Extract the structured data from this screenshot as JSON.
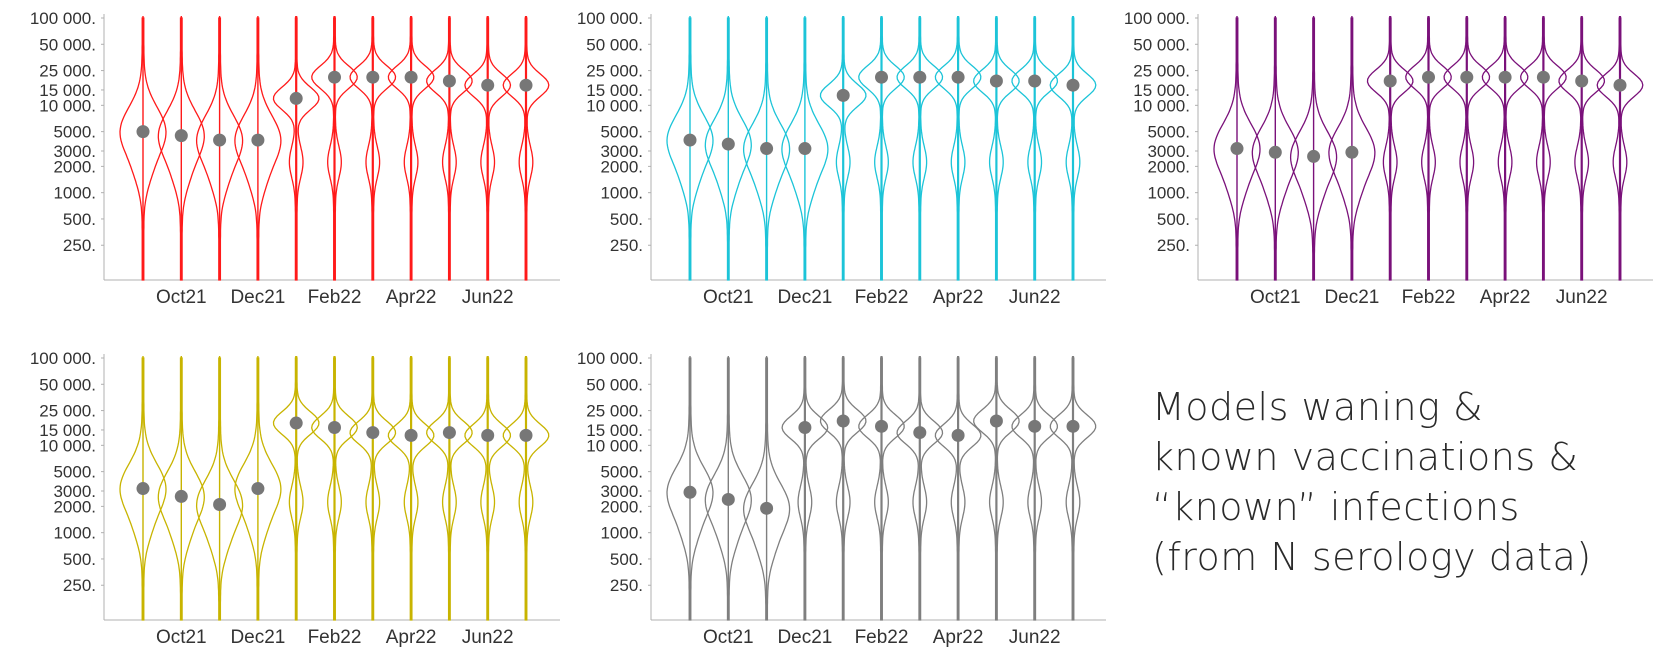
{
  "caption": {
    "line1": "Models waning &",
    "line2": "known vaccinations &",
    "line3": "“known” infections",
    "line4": "(from N serology data)"
  },
  "chart_data": [
    {
      "type": "violin",
      "color": "#ff1a1a",
      "y_scale": "log",
      "ylim": [
        100,
        100000
      ],
      "yticks": [
        100000,
        50000,
        25000,
        15000,
        10000,
        5000,
        3000,
        2000,
        1000,
        500,
        250
      ],
      "ytick_labels": [
        "100 000.",
        "50 000.",
        "25 000.",
        "15 000.",
        "10 000.",
        "5000.",
        "3000.",
        "2000.",
        "1000.",
        "500.",
        "250."
      ],
      "xtick_labels": [
        "Oct21",
        "Dec21",
        "Feb22",
        "Apr22",
        "Jun22"
      ],
      "median_values": [
        5000,
        4500,
        4000,
        4000,
        12000,
        21000,
        21000,
        21000,
        19000,
        17000,
        17000
      ]
    },
    {
      "type": "violin",
      "color": "#1cc4d8",
      "y_scale": "log",
      "ylim": [
        100,
        100000
      ],
      "yticks": [
        100000,
        50000,
        25000,
        15000,
        10000,
        5000,
        3000,
        2000,
        1000,
        500,
        250
      ],
      "ytick_labels": [
        "100 000.",
        "50 000.",
        "25 000.",
        "15 000.",
        "10 000.",
        "5000.",
        "3000.",
        "2000.",
        "1000.",
        "500.",
        "250."
      ],
      "xtick_labels": [
        "Oct21",
        "Dec21",
        "Feb22",
        "Apr22",
        "Jun22"
      ],
      "median_values": [
        4000,
        3600,
        3200,
        3200,
        13000,
        21000,
        21000,
        21000,
        19000,
        19000,
        17000
      ]
    },
    {
      "type": "violin",
      "color": "#7a117a",
      "y_scale": "log",
      "ylim": [
        100,
        100000
      ],
      "yticks": [
        100000,
        50000,
        25000,
        15000,
        10000,
        5000,
        3000,
        2000,
        1000,
        500,
        250
      ],
      "ytick_labels": [
        "100 000.",
        "50 000.",
        "25 000.",
        "15 000.",
        "10 000.",
        "5000.",
        "3000.",
        "2000.",
        "1000.",
        "500.",
        "250."
      ],
      "xtick_labels": [
        "Oct21",
        "Dec21",
        "Feb22",
        "Apr22",
        "Jun22"
      ],
      "median_values": [
        3200,
        2900,
        2600,
        2900,
        19000,
        21000,
        21000,
        21000,
        21000,
        19000,
        17000
      ]
    },
    {
      "type": "violin",
      "color": "#c8b400",
      "y_scale": "log",
      "ylim": [
        100,
        100000
      ],
      "yticks": [
        100000,
        50000,
        25000,
        15000,
        10000,
        5000,
        3000,
        2000,
        1000,
        500,
        250
      ],
      "ytick_labels": [
        "100 000.",
        "50 000.",
        "25 000.",
        "15 000.",
        "10 000.",
        "5000.",
        "3000.",
        "2000.",
        "1000.",
        "500.",
        "250."
      ],
      "xtick_labels": [
        "Oct21",
        "Dec21",
        "Feb22",
        "Apr22",
        "Jun22"
      ],
      "median_values": [
        3200,
        2600,
        2100,
        3200,
        18000,
        16000,
        14000,
        13000,
        14000,
        13000,
        13000
      ]
    },
    {
      "type": "violin",
      "color": "#7f7f7f",
      "y_scale": "log",
      "ylim": [
        100,
        100000
      ],
      "yticks": [
        100000,
        50000,
        25000,
        15000,
        10000,
        5000,
        3000,
        2000,
        1000,
        500,
        250
      ],
      "ytick_labels": [
        "100 000.",
        "50 000.",
        "25 000.",
        "15 000.",
        "10 000.",
        "5000.",
        "3000.",
        "2000.",
        "1000.",
        "500.",
        "250."
      ],
      "xtick_labels": [
        "Oct21",
        "Dec21",
        "Feb22",
        "Apr22",
        "Jun22"
      ],
      "median_values": [
        2900,
        2400,
        1900,
        16000,
        19000,
        16500,
        14000,
        13000,
        19000,
        16500,
        16500
      ]
    }
  ]
}
